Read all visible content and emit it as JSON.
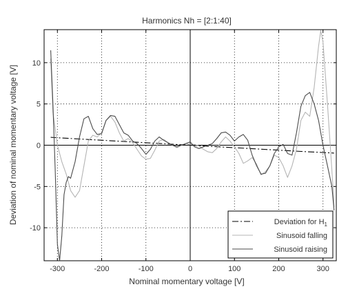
{
  "chart_data": {
    "type": "line",
    "title": "Harmonics Nh = [2:1:40]",
    "xlabel": "Nominal momentary voltage [V]",
    "ylabel": "Deviation of nominal momentary voltage [V]",
    "xlim": [
      -330,
      330
    ],
    "ylim": [
      -14,
      14
    ],
    "xticks": [
      -300,
      -200,
      -100,
      0,
      100,
      200,
      300
    ],
    "yticks": [
      -10,
      -5,
      0,
      5,
      10
    ],
    "grid": true,
    "legend_placement": "bottom-right",
    "colors": {
      "axes": "#000000",
      "grid": "#000000",
      "background": "#ffffff"
    },
    "series": [
      {
        "name": "Deviation for H1",
        "legend_main": "Deviation for H",
        "legend_sub": "1",
        "style": "dashdot",
        "color": "#000000",
        "x": [
          -315,
          -250,
          -150,
          -50,
          0,
          50,
          150,
          250,
          325
        ],
        "y": [
          0.95,
          0.75,
          0.45,
          0.15,
          0,
          -0.15,
          -0.45,
          -0.75,
          -0.95
        ]
      },
      {
        "name": "Sinusoid falling",
        "style": "solid",
        "color": "#b4b4b4",
        "x": [
          -315,
          -310,
          -300,
          -290,
          -280,
          -270,
          -260,
          -250,
          -240,
          -230,
          -220,
          -210,
          -200,
          -190,
          -180,
          -170,
          -160,
          -150,
          -140,
          -130,
          -120,
          -110,
          -100,
          -90,
          -80,
          -70,
          -60,
          -50,
          -40,
          -30,
          -20,
          -10,
          0,
          10,
          20,
          30,
          40,
          50,
          60,
          70,
          80,
          90,
          100,
          110,
          120,
          130,
          140,
          150,
          160,
          170,
          180,
          190,
          200,
          210,
          220,
          230,
          240,
          250,
          260,
          270,
          280,
          290,
          295,
          300,
          310,
          320,
          325
        ],
        "y": [
          10.5,
          4.0,
          0.0,
          -2.0,
          -3.5,
          -5.5,
          -6.3,
          -5.5,
          -2.5,
          0.5,
          1.2,
          1.0,
          1.5,
          3.0,
          3.5,
          2.8,
          1.5,
          0.5,
          0.8,
          0.3,
          -0.5,
          -1.3,
          -1.7,
          -1.6,
          -0.6,
          0.5,
          0.7,
          0.3,
          0.0,
          -0.3,
          0.0,
          0.2,
          0.1,
          0.1,
          -0.1,
          -0.5,
          -0.8,
          -0.9,
          -0.4,
          0.4,
          1.0,
          0.5,
          -0.2,
          -1.0,
          -2.2,
          -1.9,
          -1.5,
          -2.3,
          -3.6,
          -3.2,
          -2.5,
          -1.2,
          -1.5,
          -2.5,
          -3.9,
          -2.5,
          -0.5,
          3.0,
          4.0,
          3.5,
          7.0,
          12.0,
          13.9,
          12.5,
          5.0,
          -3.0,
          -7.5
        ]
      },
      {
        "name": "Sinusoid raising",
        "style": "solid",
        "color": "#4a4a4a",
        "x": [
          -315,
          -310,
          -305,
          -300,
          -295,
          -290,
          -285,
          -280,
          -275,
          -270,
          -260,
          -250,
          -240,
          -230,
          -220,
          -210,
          -200,
          -190,
          -180,
          -170,
          -160,
          -150,
          -140,
          -130,
          -120,
          -110,
          -100,
          -90,
          -80,
          -70,
          -60,
          -50,
          -40,
          -30,
          -20,
          -10,
          0,
          10,
          20,
          30,
          40,
          50,
          60,
          70,
          80,
          90,
          100,
          110,
          120,
          130,
          140,
          150,
          160,
          170,
          180,
          190,
          200,
          210,
          220,
          230,
          240,
          250,
          260,
          270,
          280,
          290,
          300,
          310,
          320,
          325
        ],
        "y": [
          11.5,
          5.0,
          -3.0,
          -12.0,
          -14.0,
          -11.0,
          -6.0,
          -4.5,
          -3.8,
          -4.0,
          -2.0,
          1.0,
          3.2,
          3.5,
          2.0,
          1.3,
          1.4,
          3.0,
          3.6,
          3.5,
          2.5,
          1.5,
          1.2,
          0.5,
          0.2,
          -0.4,
          -1.1,
          -0.5,
          0.5,
          1.0,
          0.6,
          0.3,
          0.0,
          -0.2,
          0.0,
          0.2,
          0.4,
          -0.2,
          -0.4,
          -0.2,
          0.0,
          0.2,
          0.8,
          1.5,
          1.6,
          1.2,
          0.5,
          1.0,
          1.3,
          0.6,
          -1.2,
          -2.5,
          -3.5,
          -3.4,
          -2.5,
          -1.0,
          -0.2,
          0.1,
          -1.0,
          -1.2,
          1.5,
          4.7,
          6.0,
          6.4,
          5.0,
          3.0,
          0.0,
          -2.5,
          -5.0,
          -7.9
        ]
      }
    ]
  }
}
